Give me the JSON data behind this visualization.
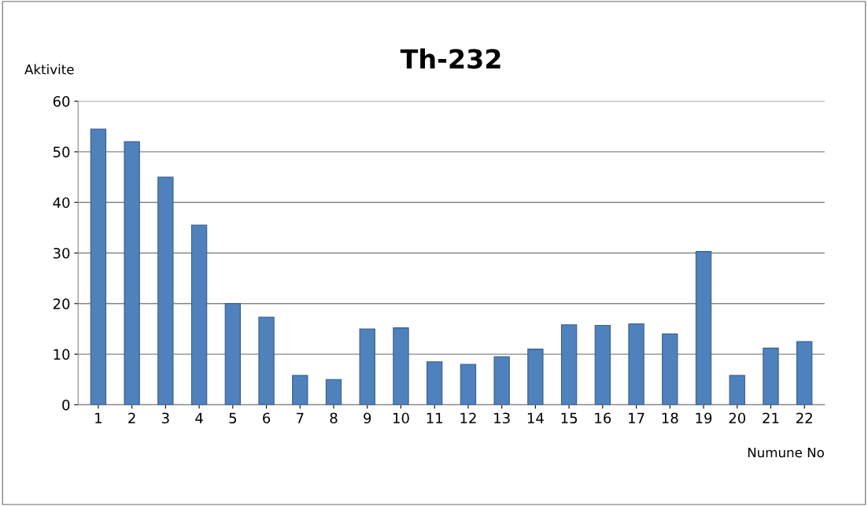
{
  "chart_data": {
    "type": "bar",
    "title": "Th-232",
    "xlabel": "Numune No",
    "ylabel": "Aktivite",
    "categories": [
      "1",
      "2",
      "3",
      "4",
      "5",
      "6",
      "7",
      "8",
      "9",
      "10",
      "11",
      "12",
      "13",
      "14",
      "15",
      "16",
      "17",
      "18",
      "19",
      "20",
      "21",
      "22"
    ],
    "values": [
      54.5,
      52,
      45,
      35.5,
      20,
      17.3,
      5.8,
      5,
      15,
      15.2,
      8.5,
      8,
      9.5,
      11,
      15.8,
      15.7,
      16,
      14,
      30.3,
      5.8,
      11.2,
      12.5
    ],
    "color": "#4f81bd",
    "ylim": [
      0,
      60
    ],
    "yticks": [
      0,
      10,
      20,
      30,
      40,
      50,
      60
    ],
    "grid": "y",
    "legend": false
  }
}
